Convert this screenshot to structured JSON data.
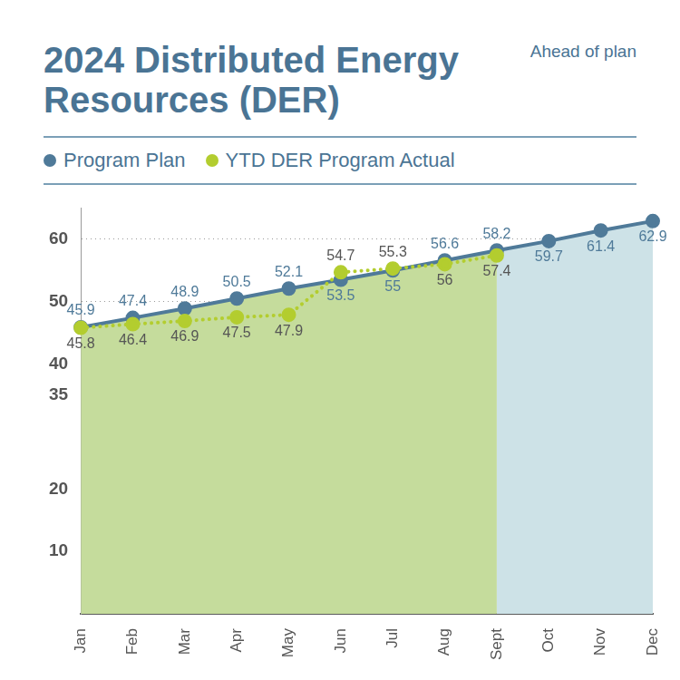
{
  "chart_data": {
    "type": "line",
    "title": "2024 Distributed Energy Resources (DER)",
    "annotation": "Ahead of plan",
    "categories": [
      "Jan",
      "Feb",
      "Mar",
      "Apr",
      "May",
      "Jun",
      "Jul",
      "Aug",
      "Sept",
      "Oct",
      "Nov",
      "Dec"
    ],
    "series": [
      {
        "name": "Program Plan",
        "color": "#4f7a99",
        "marker": "circle",
        "line_style": "solid",
        "values": [
          45.9,
          47.4,
          48.9,
          50.5,
          52.1,
          53.5,
          55,
          56.6,
          58.2,
          59.7,
          61.4,
          62.9
        ]
      },
      {
        "name": "YTD DER Program Actual",
        "color": "#b3cd2f",
        "marker": "circle",
        "line_style": "dotted",
        "values": [
          45.8,
          46.4,
          46.9,
          47.5,
          47.9,
          54.7,
          55.3,
          56,
          57.4,
          null,
          null,
          null
        ]
      }
    ],
    "ylim": [
      0,
      65
    ],
    "yticks": [
      10,
      20,
      35,
      40,
      50,
      60
    ],
    "grid": true,
    "legend": "top",
    "data_labels": true
  }
}
